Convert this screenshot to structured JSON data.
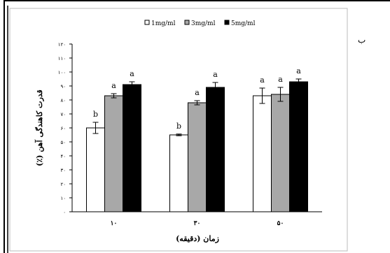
{
  "panel_label": "ب",
  "chart_data": {
    "type": "bar",
    "title": "",
    "xlabel": "زمان (دقیقه)",
    "ylabel": "قدرت کاهندگی آهن (٪)",
    "categories": [
      "۱۰",
      "۳۰",
      "۵۰"
    ],
    "ylim": [
      0,
      120
    ],
    "yticks": [
      0,
      10,
      20,
      30,
      40,
      50,
      60,
      70,
      80,
      90,
      100,
      110,
      120
    ],
    "ytick_labels": [
      "۰",
      "۱۰",
      "۲۰",
      "۳۰",
      "۴۰",
      "۵۰",
      "۶۰",
      "۷۰",
      "۸۰",
      "۹۰",
      "۱۰۰",
      "۱۱۰",
      "۱۲۰"
    ],
    "grid": false,
    "legend_position": "top",
    "series": [
      {
        "name": "1mg/ml",
        "color": "#ffffff",
        "values": [
          60,
          55,
          83
        ],
        "errors": [
          4,
          0.6,
          5.5
        ],
        "letters": [
          "b",
          "b",
          "a"
        ]
      },
      {
        "name": "3mg/ml",
        "color": "#a8a8a8",
        "values": [
          83,
          78,
          84
        ],
        "errors": [
          1.5,
          1.5,
          5
        ],
        "letters": [
          "a",
          "a",
          "a"
        ]
      },
      {
        "name": "5mg/ml",
        "color": "#000000",
        "values": [
          91,
          89,
          93
        ],
        "errors": [
          2,
          3.5,
          2
        ],
        "letters": [
          "a",
          "a",
          "a"
        ]
      }
    ]
  }
}
